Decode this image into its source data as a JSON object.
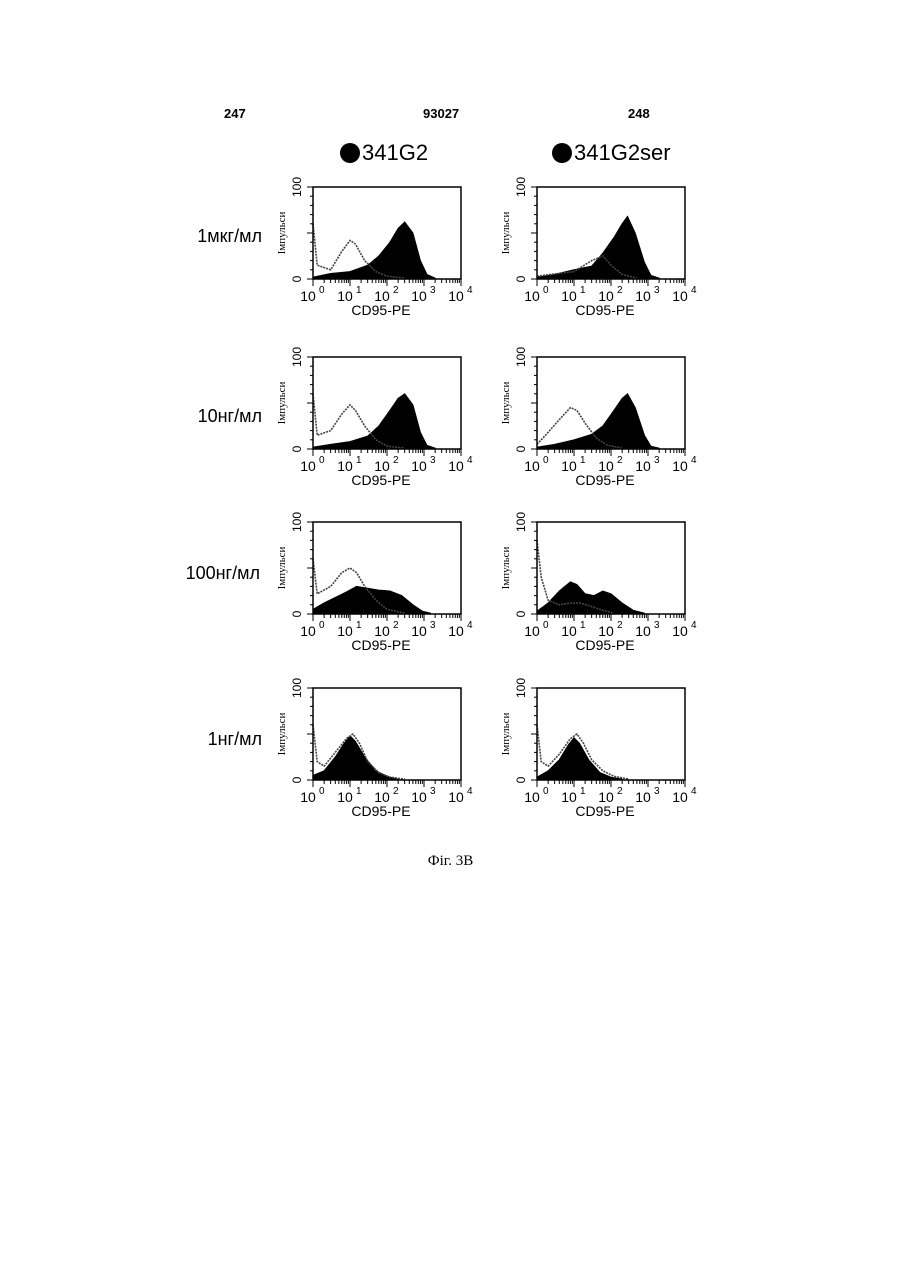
{
  "header": {
    "left": "247",
    "center": "93027",
    "right": "248"
  },
  "columns": [
    "341G2",
    "341G2ser"
  ],
  "rows": [
    "1мкг/мл",
    "10нг/мл",
    "100нг/мл",
    "1нг/мл"
  ],
  "figure_caption": "Фіг. 3В",
  "colors": {
    "filled": "#000000",
    "outline": "#444444",
    "background": "#ffffff"
  },
  "chart_data": [
    {
      "type": "area",
      "column": "341G2",
      "row": "1мкг/мл",
      "xlabel": "CD95-PE",
      "ylabel": "Імпульси",
      "x_scale": "log",
      "xlim": [
        1,
        10000
      ],
      "ylim": [
        0,
        100
      ],
      "x_ticks": [
        "10",
        "10",
        "10",
        "10",
        "10"
      ],
      "x_tick_exponents": [
        "0",
        "1",
        "2",
        "3",
        "4"
      ],
      "y_ticks": [
        "0",
        "100"
      ],
      "series": [
        {
          "name": "filled",
          "points": [
            [
              1,
              2
            ],
            [
              3,
              6
            ],
            [
              10,
              8
            ],
            [
              30,
              15
            ],
            [
              60,
              25
            ],
            [
              120,
              40
            ],
            [
              200,
              55
            ],
            [
              300,
              62
            ],
            [
              500,
              50
            ],
            [
              800,
              20
            ],
            [
              1200,
              5
            ],
            [
              2000,
              1
            ]
          ]
        },
        {
          "name": "outline",
          "points": [
            [
              1,
              60
            ],
            [
              1.3,
              15
            ],
            [
              3,
              10
            ],
            [
              6,
              30
            ],
            [
              10,
              42
            ],
            [
              14,
              38
            ],
            [
              25,
              20
            ],
            [
              50,
              8
            ],
            [
              100,
              3
            ],
            [
              300,
              1
            ]
          ]
        }
      ]
    },
    {
      "type": "area",
      "column": "341G2ser",
      "row": "1мкг/мл",
      "xlabel": "CD95-PE",
      "ylabel": "Імпульси",
      "x_scale": "log",
      "xlim": [
        1,
        10000
      ],
      "ylim": [
        0,
        100
      ],
      "x_ticks": [
        "10",
        "10",
        "10",
        "10",
        "10"
      ],
      "x_tick_exponents": [
        "0",
        "1",
        "2",
        "3",
        "4"
      ],
      "y_ticks": [
        "0",
        "100"
      ],
      "series": [
        {
          "name": "filled",
          "points": [
            [
              1,
              2
            ],
            [
              3,
              5
            ],
            [
              10,
              10
            ],
            [
              30,
              14
            ],
            [
              60,
              28
            ],
            [
              120,
              45
            ],
            [
              200,
              60
            ],
            [
              280,
              68
            ],
            [
              450,
              50
            ],
            [
              800,
              18
            ],
            [
              1200,
              4
            ],
            [
              2000,
              1
            ]
          ]
        },
        {
          "name": "outline",
          "points": [
            [
              1,
              3
            ],
            [
              10,
              8
            ],
            [
              30,
              20
            ],
            [
              60,
              25
            ],
            [
              100,
              15
            ],
            [
              200,
              5
            ],
            [
              500,
              1
            ]
          ]
        }
      ]
    },
    {
      "type": "area",
      "column": "341G2",
      "row": "10нг/мл",
      "xlabel": "CD95-PE",
      "ylabel": "Імпульси",
      "x_scale": "log",
      "xlim": [
        1,
        10000
      ],
      "ylim": [
        0,
        100
      ],
      "x_ticks": [
        "10",
        "10",
        "10",
        "10",
        "10"
      ],
      "x_tick_exponents": [
        "0",
        "1",
        "2",
        "3",
        "4"
      ],
      "y_ticks": [
        "0",
        "100"
      ],
      "series": [
        {
          "name": "filled",
          "points": [
            [
              1,
              2
            ],
            [
              3,
              5
            ],
            [
              10,
              8
            ],
            [
              30,
              14
            ],
            [
              60,
              25
            ],
            [
              120,
              42
            ],
            [
              200,
              55
            ],
            [
              300,
              60
            ],
            [
              500,
              48
            ],
            [
              800,
              18
            ],
            [
              1200,
              4
            ],
            [
              2000,
              1
            ]
          ]
        },
        {
          "name": "outline",
          "points": [
            [
              1,
              60
            ],
            [
              1.3,
              15
            ],
            [
              3,
              20
            ],
            [
              6,
              38
            ],
            [
              10,
              48
            ],
            [
              14,
              42
            ],
            [
              25,
              25
            ],
            [
              50,
              10
            ],
            [
              100,
              3
            ],
            [
              300,
              1
            ]
          ]
        }
      ]
    },
    {
      "type": "area",
      "column": "341G2ser",
      "row": "10нг/мл",
      "xlabel": "CD95-PE",
      "ylabel": "Імпульси",
      "x_scale": "log",
      "xlim": [
        1,
        10000
      ],
      "ylim": [
        0,
        100
      ],
      "x_ticks": [
        "10",
        "10",
        "10",
        "10",
        "10"
      ],
      "x_tick_exponents": [
        "0",
        "1",
        "2",
        "3",
        "4"
      ],
      "y_ticks": [
        "0",
        "100"
      ],
      "series": [
        {
          "name": "filled",
          "points": [
            [
              1,
              2
            ],
            [
              3,
              5
            ],
            [
              10,
              10
            ],
            [
              30,
              16
            ],
            [
              60,
              25
            ],
            [
              120,
              42
            ],
            [
              200,
              55
            ],
            [
              280,
              60
            ],
            [
              450,
              45
            ],
            [
              800,
              15
            ],
            [
              1200,
              3
            ],
            [
              2000,
              1
            ]
          ]
        },
        {
          "name": "outline",
          "points": [
            [
              1,
              5
            ],
            [
              2,
              18
            ],
            [
              4,
              32
            ],
            [
              8,
              45
            ],
            [
              12,
              42
            ],
            [
              20,
              28
            ],
            [
              40,
              12
            ],
            [
              80,
              4
            ],
            [
              200,
              1
            ]
          ]
        }
      ]
    },
    {
      "type": "area",
      "column": "341G2",
      "row": "100нг/мл",
      "xlabel": "CD95-PE",
      "ylabel": "Імпульси",
      "x_scale": "log",
      "xlim": [
        1,
        10000
      ],
      "ylim": [
        0,
        100
      ],
      "x_ticks": [
        "10",
        "10",
        "10",
        "10",
        "10"
      ],
      "x_tick_exponents": [
        "0",
        "1",
        "2",
        "3",
        "4"
      ],
      "y_ticks": [
        "0",
        "100"
      ],
      "series": [
        {
          "name": "filled",
          "points": [
            [
              1,
              5
            ],
            [
              2,
              12
            ],
            [
              4,
              18
            ],
            [
              8,
              24
            ],
            [
              15,
              30
            ],
            [
              30,
              28
            ],
            [
              60,
              26
            ],
            [
              120,
              25
            ],
            [
              250,
              20
            ],
            [
              500,
              10
            ],
            [
              900,
              3
            ],
            [
              1500,
              1
            ]
          ]
        },
        {
          "name": "outline",
          "points": [
            [
              1,
              60
            ],
            [
              1.3,
              22
            ],
            [
              3,
              30
            ],
            [
              6,
              45
            ],
            [
              10,
              50
            ],
            [
              15,
              45
            ],
            [
              25,
              30
            ],
            [
              50,
              15
            ],
            [
              100,
              5
            ],
            [
              300,
              1
            ]
          ]
        }
      ]
    },
    {
      "type": "area",
      "column": "341G2ser",
      "row": "100нг/мл",
      "xlabel": "CD95-PE",
      "ylabel": "Імпульси",
      "x_scale": "log",
      "xlim": [
        1,
        10000
      ],
      "ylim": [
        0,
        100
      ],
      "x_ticks": [
        "10",
        "10",
        "10",
        "10",
        "10"
      ],
      "x_tick_exponents": [
        "0",
        "1",
        "2",
        "3",
        "4"
      ],
      "y_ticks": [
        "0",
        "100"
      ],
      "series": [
        {
          "name": "filled",
          "points": [
            [
              1,
              3
            ],
            [
              2,
              12
            ],
            [
              4,
              25
            ],
            [
              8,
              35
            ],
            [
              12,
              32
            ],
            [
              20,
              22
            ],
            [
              35,
              20
            ],
            [
              60,
              25
            ],
            [
              100,
              22
            ],
            [
              200,
              12
            ],
            [
              400,
              4
            ],
            [
              800,
              1
            ]
          ]
        },
        {
          "name": "outline",
          "points": [
            [
              1,
              80
            ],
            [
              1.3,
              40
            ],
            [
              2,
              15
            ],
            [
              4,
              10
            ],
            [
              8,
              12
            ],
            [
              15,
              12
            ],
            [
              30,
              8
            ],
            [
              60,
              4
            ],
            [
              120,
              1
            ]
          ]
        }
      ]
    },
    {
      "type": "area",
      "column": "341G2",
      "row": "1нг/мл",
      "xlabel": "CD95-PE",
      "ylabel": "Імпульси",
      "x_scale": "log",
      "xlim": [
        1,
        10000
      ],
      "ylim": [
        0,
        100
      ],
      "x_ticks": [
        "10",
        "10",
        "10",
        "10",
        "10"
      ],
      "x_tick_exponents": [
        "0",
        "1",
        "2",
        "3",
        "4"
      ],
      "y_ticks": [
        "0",
        "100"
      ],
      "series": [
        {
          "name": "filled",
          "points": [
            [
              1,
              5
            ],
            [
              2,
              10
            ],
            [
              4,
              25
            ],
            [
              7,
              40
            ],
            [
              10,
              48
            ],
            [
              14,
              42
            ],
            [
              25,
              25
            ],
            [
              50,
              10
            ],
            [
              100,
              4
            ],
            [
              200,
              1
            ]
          ]
        },
        {
          "name": "outline",
          "points": [
            [
              1,
              60
            ],
            [
              1.3,
              20
            ],
            [
              2,
              15
            ],
            [
              4,
              30
            ],
            [
              8,
              45
            ],
            [
              12,
              50
            ],
            [
              18,
              40
            ],
            [
              30,
              20
            ],
            [
              60,
              8
            ],
            [
              120,
              3
            ],
            [
              300,
              1
            ]
          ]
        }
      ]
    },
    {
      "type": "area",
      "column": "341G2ser",
      "row": "1нг/мл",
      "xlabel": "CD95-PE",
      "ylabel": "Імпульси",
      "x_scale": "log",
      "xlim": [
        1,
        10000
      ],
      "ylim": [
        0,
        100
      ],
      "x_ticks": [
        "10",
        "10",
        "10",
        "10",
        "10"
      ],
      "x_tick_exponents": [
        "0",
        "1",
        "2",
        "3",
        "4"
      ],
      "y_ticks": [
        "0",
        "100"
      ],
      "series": [
        {
          "name": "filled",
          "points": [
            [
              1,
              3
            ],
            [
              2,
              10
            ],
            [
              4,
              22
            ],
            [
              7,
              38
            ],
            [
              10,
              46
            ],
            [
              14,
              40
            ],
            [
              25,
              22
            ],
            [
              50,
              8
            ],
            [
              100,
              3
            ],
            [
              200,
              1
            ]
          ]
        },
        {
          "name": "outline",
          "points": [
            [
              1,
              60
            ],
            [
              1.3,
              20
            ],
            [
              2,
              15
            ],
            [
              4,
              28
            ],
            [
              8,
              45
            ],
            [
              12,
              50
            ],
            [
              18,
              40
            ],
            [
              30,
              22
            ],
            [
              60,
              10
            ],
            [
              120,
              4
            ],
            [
              300,
              1
            ]
          ]
        }
      ]
    }
  ]
}
